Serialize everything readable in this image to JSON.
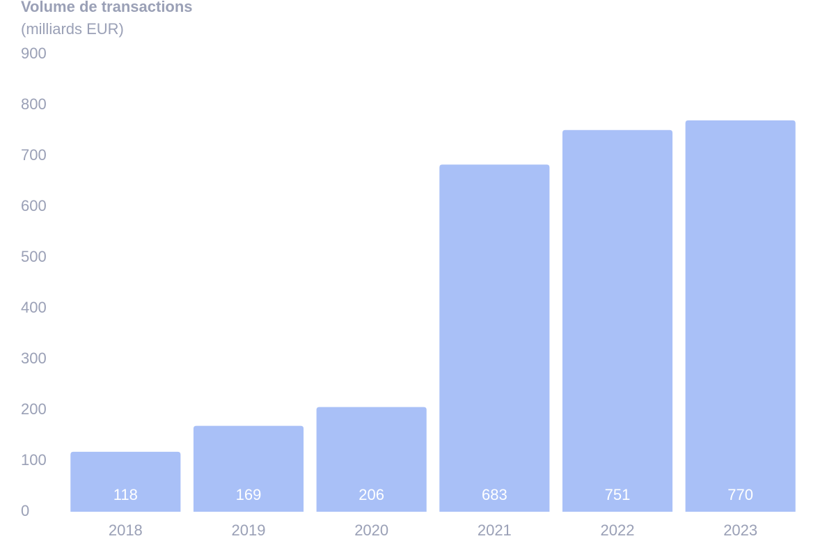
{
  "chart_data": {
    "type": "bar",
    "title": "Volume de transactions",
    "subtitle": "(milliards EUR)",
    "categories": [
      "2018",
      "2019",
      "2020",
      "2021",
      "2022",
      "2023"
    ],
    "values": [
      118,
      169,
      206,
      683,
      751,
      770
    ],
    "color": "#a9c0f7",
    "ylim": [
      0,
      900
    ],
    "yticks": [
      0,
      100,
      200,
      300,
      400,
      500,
      600,
      700,
      800,
      900
    ],
    "grid": false
  }
}
